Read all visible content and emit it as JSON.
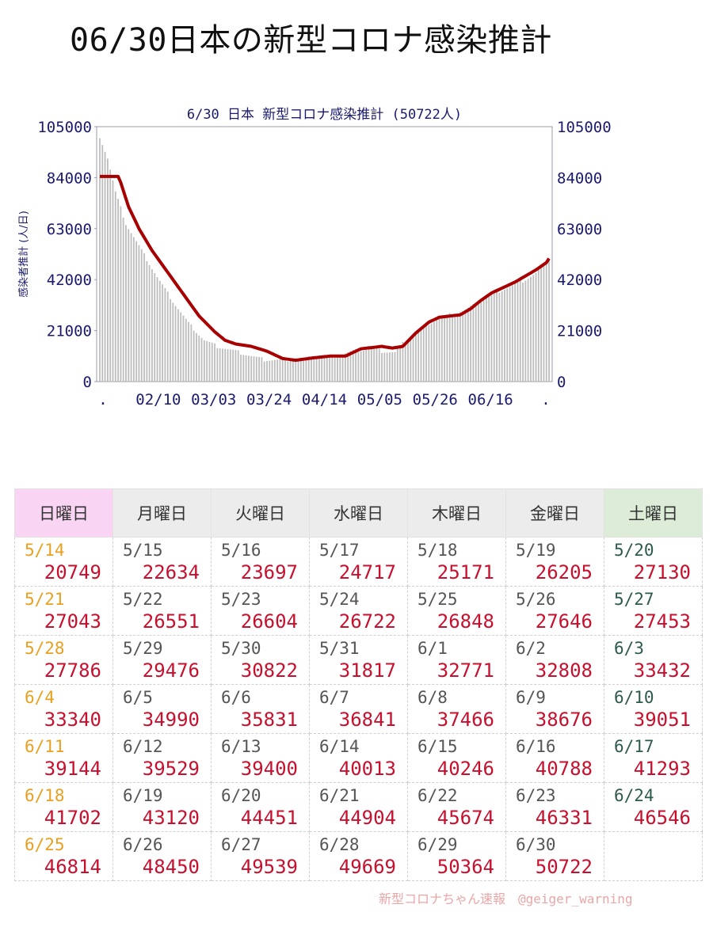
{
  "page": {
    "title": "06/30日本の新型コロナ感染推計",
    "credit": "新型コロナちゃん速報　@geiger_warning"
  },
  "colors": {
    "line": "#a80000",
    "bars": "#bdbdbd",
    "axis_text": "#1a1a6e",
    "calendar_value": "#c8102e",
    "sunday_date": "#e8a020",
    "saturday_date": "#2e5a4e"
  },
  "chart_data": {
    "type": "bar",
    "title": "6/30 日本 新型コロナ感染推計 (50722人)",
    "ylabel": "感染者推計 (人/日)",
    "ylim": [
      0,
      105000
    ],
    "yticks": [
      "105000",
      "84000",
      "63000",
      "42000",
      "21000",
      "0"
    ],
    "xticks": [
      ".",
      "02/10",
      "03/03",
      "03/24",
      "04/14",
      "05/05",
      "05/26",
      "06/16",
      "."
    ],
    "grid": false,
    "series": [
      {
        "kind": "bars",
        "note": "daily estimates from 01/20 to 06/30",
        "anchors": [
          [
            0,
            101000
          ],
          [
            3,
            92000
          ],
          [
            6,
            78000
          ],
          [
            10,
            65000
          ],
          [
            16,
            54000
          ],
          [
            22,
            43000
          ],
          [
            28,
            33000
          ],
          [
            34,
            24000
          ],
          [
            40,
            17000
          ],
          [
            45,
            14500
          ],
          [
            52,
            12500
          ],
          [
            58,
            10500
          ],
          [
            63,
            9000
          ],
          [
            70,
            8800
          ],
          [
            77,
            9500
          ],
          [
            84,
            10000
          ],
          [
            90,
            10500
          ],
          [
            97,
            12500
          ],
          [
            104,
            13500
          ],
          [
            108,
            12500
          ],
          [
            113,
            12000
          ],
          [
            115,
            14500
          ],
          [
            120,
            20000
          ],
          [
            124,
            23000
          ],
          [
            128,
            25000
          ],
          [
            134,
            27500
          ],
          [
            140,
            29500
          ],
          [
            146,
            33000
          ],
          [
            151,
            36500
          ],
          [
            157,
            39000
          ],
          [
            162,
            41500
          ],
          [
            167,
            44500
          ],
          [
            170,
            48000
          ],
          [
            172,
            50722
          ]
        ]
      },
      {
        "kind": "line",
        "note": "smoothed estimate",
        "anchors": [
          [
            0,
            84500
          ],
          [
            7,
            84500
          ],
          [
            8,
            82000
          ],
          [
            11,
            72000
          ],
          [
            15,
            63000
          ],
          [
            20,
            54000
          ],
          [
            26,
            45000
          ],
          [
            32,
            36000
          ],
          [
            38,
            27000
          ],
          [
            44,
            20500
          ],
          [
            48,
            17000
          ],
          [
            52,
            15500
          ],
          [
            58,
            14500
          ],
          [
            64,
            12500
          ],
          [
            70,
            9500
          ],
          [
            75,
            8800
          ],
          [
            82,
            9800
          ],
          [
            88,
            10500
          ],
          [
            94,
            10500
          ],
          [
            100,
            13500
          ],
          [
            108,
            14500
          ],
          [
            112,
            13800
          ],
          [
            116,
            14500
          ],
          [
            121,
            20000
          ],
          [
            126,
            24500
          ],
          [
            130,
            26500
          ],
          [
            134,
            27000
          ],
          [
            138,
            27500
          ],
          [
            142,
            30000
          ],
          [
            146,
            33500
          ],
          [
            150,
            36500
          ],
          [
            155,
            39000
          ],
          [
            159,
            41000
          ],
          [
            163,
            43500
          ],
          [
            167,
            46000
          ],
          [
            171,
            49000
          ],
          [
            172,
            50722
          ]
        ]
      }
    ]
  },
  "calendar": {
    "headers": [
      "日曜日",
      "月曜日",
      "火曜日",
      "水曜日",
      "木曜日",
      "金曜日",
      "土曜日"
    ],
    "rows": [
      [
        [
          "5/14",
          "20749"
        ],
        [
          "5/15",
          "22634"
        ],
        [
          "5/16",
          "23697"
        ],
        [
          "5/17",
          "24717"
        ],
        [
          "5/18",
          "25171"
        ],
        [
          "5/19",
          "26205"
        ],
        [
          "5/20",
          "27130"
        ]
      ],
      [
        [
          "5/21",
          "27043"
        ],
        [
          "5/22",
          "26551"
        ],
        [
          "5/23",
          "26604"
        ],
        [
          "5/24",
          "26722"
        ],
        [
          "5/25",
          "26848"
        ],
        [
          "5/26",
          "27646"
        ],
        [
          "5/27",
          "27453"
        ]
      ],
      [
        [
          "5/28",
          "27786"
        ],
        [
          "5/29",
          "29476"
        ],
        [
          "5/30",
          "30822"
        ],
        [
          "5/31",
          "31817"
        ],
        [
          "6/1",
          "32771"
        ],
        [
          "6/2",
          "32808"
        ],
        [
          "6/3",
          "33432"
        ]
      ],
      [
        [
          "6/4",
          "33340"
        ],
        [
          "6/5",
          "34990"
        ],
        [
          "6/6",
          "35831"
        ],
        [
          "6/7",
          "36841"
        ],
        [
          "6/8",
          "37466"
        ],
        [
          "6/9",
          "38676"
        ],
        [
          "6/10",
          "39051"
        ]
      ],
      [
        [
          "6/11",
          "39144"
        ],
        [
          "6/12",
          "39529"
        ],
        [
          "6/13",
          "39400"
        ],
        [
          "6/14",
          "40013"
        ],
        [
          "6/15",
          "40246"
        ],
        [
          "6/16",
          "40788"
        ],
        [
          "6/17",
          "41293"
        ]
      ],
      [
        [
          "6/18",
          "41702"
        ],
        [
          "6/19",
          "43120"
        ],
        [
          "6/20",
          "44451"
        ],
        [
          "6/21",
          "44904"
        ],
        [
          "6/22",
          "45674"
        ],
        [
          "6/23",
          "46331"
        ],
        [
          "6/24",
          "46546"
        ]
      ],
      [
        [
          "6/25",
          "46814"
        ],
        [
          "6/26",
          "48450"
        ],
        [
          "6/27",
          "49539"
        ],
        [
          "6/28",
          "49669"
        ],
        [
          "6/29",
          "50364"
        ],
        [
          "6/30",
          "50722"
        ],
        [
          "",
          ""
        ]
      ]
    ]
  }
}
